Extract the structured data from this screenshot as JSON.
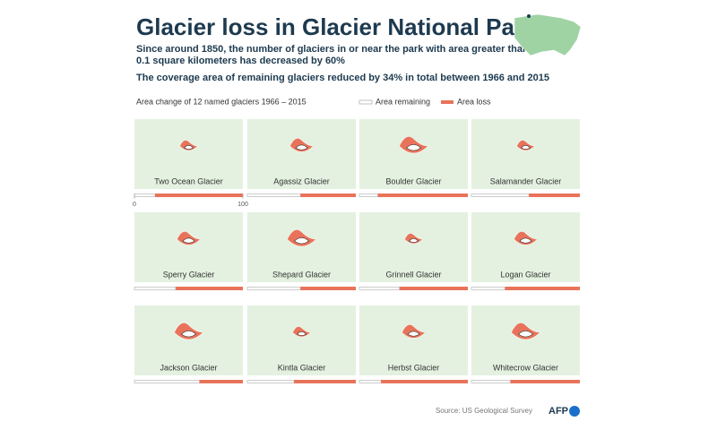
{
  "chart_data": {
    "type": "bar",
    "title": "Glacier loss in Glacier National Park",
    "subtitle_lines": [
      "Since around 1850, the number of glaciers in or near the park with area greater than",
      "0.1 square kilometers has decreased by 60%"
    ],
    "note": "The coverage area of remaining glaciers reduced by 34% in total between 1966 and 2015",
    "axis_title": "Area change of 12 named glaciers 1966 – 2015",
    "categories": [
      "Two Ocean Glacier",
      "Agassiz Glacier",
      "Boulder Glacier",
      "Salamander Glacier",
      "Sperry Glacier",
      "Shepard Glacier",
      "Grinnell Glacier",
      "Logan Glacier",
      "Jackson Glacier",
      "Kintla Glacier",
      "Herbst Glacier",
      "Whitecrow Glacier"
    ],
    "series": [
      {
        "name": "Area remaining",
        "color": "#ffffff",
        "values": [
          19,
          49,
          17,
          53,
          38,
          49,
          37,
          31,
          60,
          43,
          20,
          36
        ]
      },
      {
        "name": "Area loss",
        "color": "#e8735a",
        "values": [
          81,
          51,
          83,
          47,
          62,
          51,
          63,
          69,
          40,
          57,
          80,
          64
        ]
      }
    ],
    "xlim": [
      0,
      100
    ],
    "xticks": [
      0,
      100
    ],
    "source": "Source: US Geological Survey",
    "logo": "AFP"
  }
}
